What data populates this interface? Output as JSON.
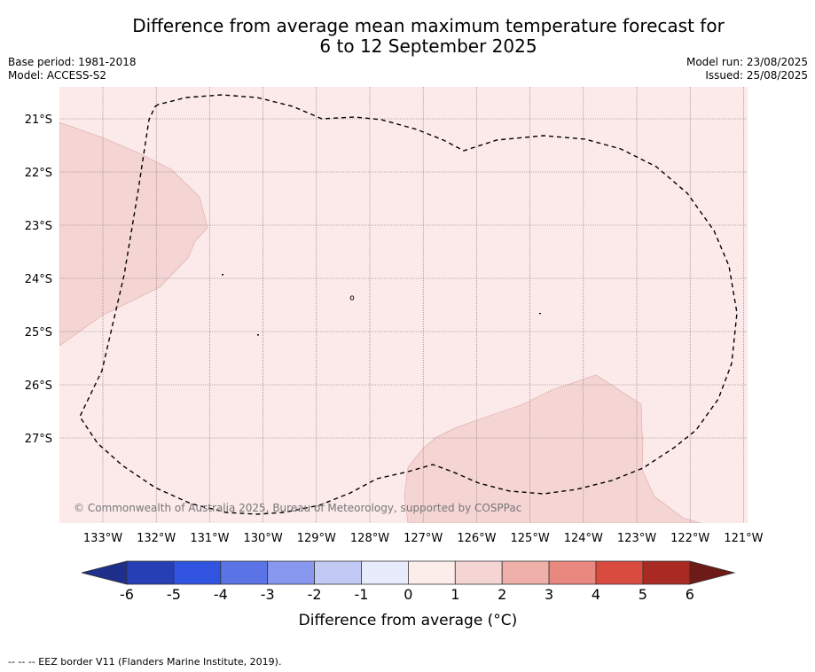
{
  "title": {
    "line1": "Difference from average mean maximum temperature forecast for",
    "line2": "6 to 12 September 2025"
  },
  "meta": {
    "base_period": "Base period: 1981-2018",
    "model": "Model: ACCESS-S2",
    "model_run": "Model run: 23/08/2025",
    "issued": "Issued: 25/08/2025"
  },
  "map": {
    "lat_labels": [
      "21°S",
      "22°S",
      "23°S",
      "24°S",
      "25°S",
      "26°S",
      "27°S"
    ],
    "lon_labels": [
      "133°W",
      "132°W",
      "131°W",
      "130°W",
      "129°W",
      "128°W",
      "127°W",
      "126°W",
      "125°W",
      "124°W",
      "123°W",
      "122°W",
      "121°W"
    ],
    "copyright": "© Commonwealth of Australia 2025, Bureau of Meteorology, supported by COSPPac",
    "colors": {
      "background_class": "#fbeae9",
      "warm_class": "#f5d5d4",
      "border": "#000000"
    }
  },
  "colorbar": {
    "ticks": [
      "-6",
      "-5",
      "-4",
      "-3",
      "-2",
      "-1",
      "0",
      "1",
      "2",
      "3",
      "4",
      "5",
      "6"
    ],
    "colors": [
      "#1f2f8c",
      "#273fb5",
      "#3154e0",
      "#5a73e5",
      "#8898ee",
      "#c2c9f5",
      "#e8ebfb",
      "#fdedea",
      "#f5d5d4",
      "#efb0aa",
      "#e9887f",
      "#d94a3f",
      "#a82a22",
      "#6e1b17"
    ],
    "label": "Difference from average (°C)"
  },
  "footer": {
    "legend": "--  --  -- EEZ border V11 (Flanders Marine Institute, 2019)."
  }
}
